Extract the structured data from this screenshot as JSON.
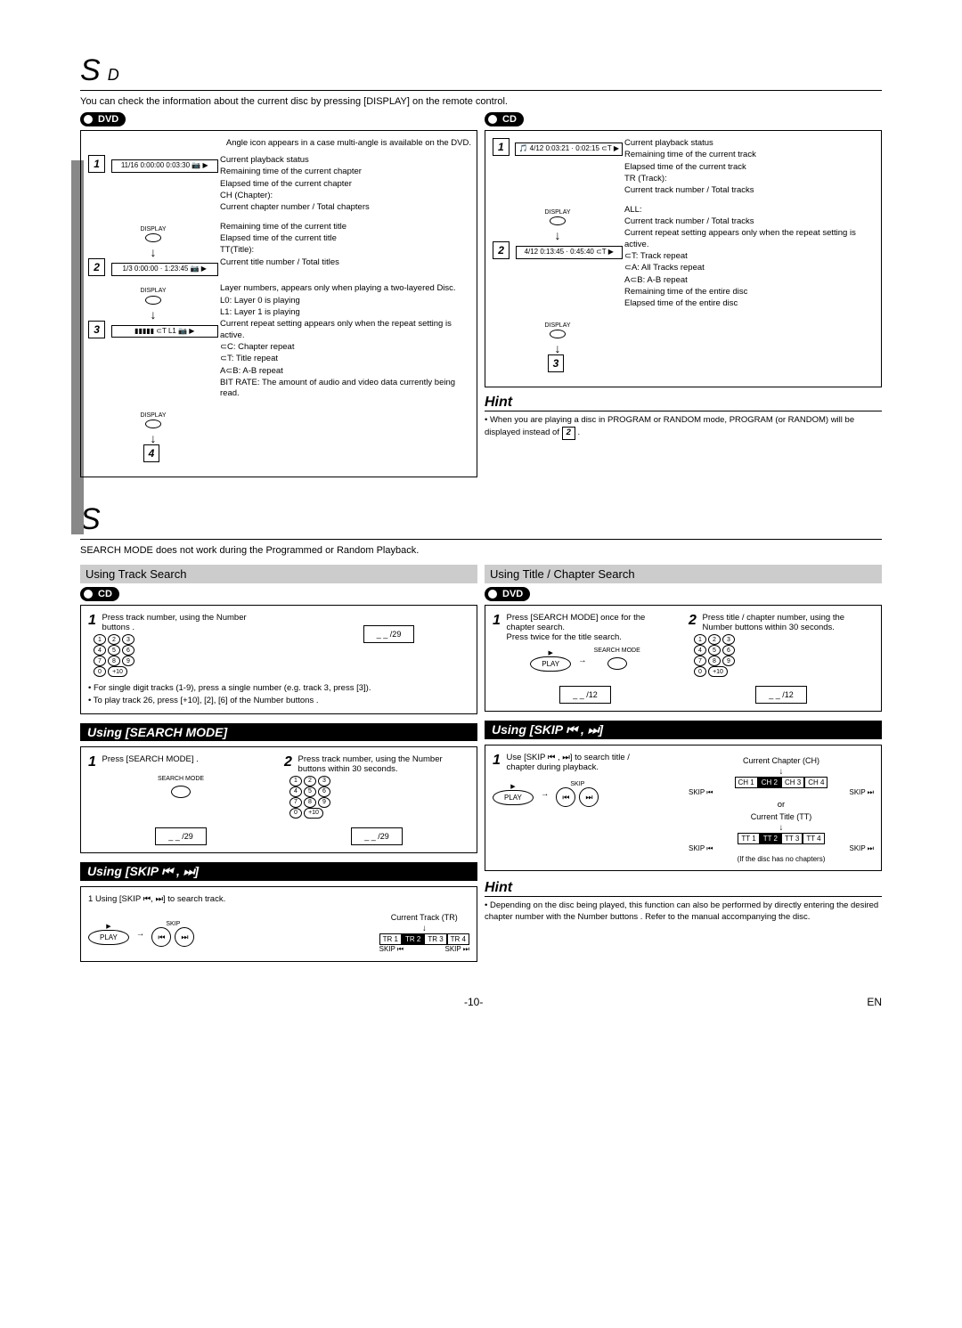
{
  "header": {
    "title": "S",
    "subtitle": "D"
  },
  "intro": "You can check the information about the current disc by pressing [DISPLAY]  on the remote control.",
  "dvd": {
    "badge": "DVD",
    "angle_note": "Angle icon appears in a case multi-angle is available on the DVD.",
    "rows": [
      {
        "num": "1",
        "osd": "11/16  0:00:00  0:03:30  📷 ▶",
        "lines": [
          "Current playback status",
          "Remaining time of the current chapter",
          "Elapsed time of the current chapter",
          "CH (Chapter):",
          "Current chapter number / Total chapters"
        ]
      },
      {
        "num": "2",
        "osd": "1/3  0:00:00 · 1:23:45  📷 ▶",
        "lines": [
          "Remaining time of the current title",
          "Elapsed time of the current title",
          "TT(Title):",
          "Current title number / Total titles"
        ]
      },
      {
        "num": "3",
        "osd": "▮▮▮▮▮  ⊂T L1  📷 ▶",
        "lines": [
          "Layer numbers, appears only when playing a two-layered Disc.",
          "L0: Layer 0 is playing",
          "L1: Layer 1 is playing",
          "Current repeat setting appears only when the repeat setting is active.",
          "⊂C: Chapter repeat",
          "⊂T: Title repeat",
          "A⊂B: A-B repeat",
          "BIT RATE: The amount of audio and video data currently being read."
        ]
      },
      {
        "num": "4",
        "osd": "",
        "lines": []
      }
    ]
  },
  "cd": {
    "badge": "CD",
    "rows": [
      {
        "num": "1",
        "osd": "🎵 4/12  0:03:21 · 0:02:15  ⊂T  ▶",
        "lines": [
          "Current playback status",
          "Remaining time of the current track",
          "Elapsed time of the current track",
          "TR (Track):",
          "Current track number / Total tracks"
        ]
      },
      {
        "num": "2",
        "osd": "4/12  0:13:45 · 0:45:40  ⊂T  ▶",
        "lines": [
          "ALL:",
          "Current track number / Total tracks",
          "Current repeat setting appears only when the repeat setting is active.",
          "⊂T: Track repeat",
          "⊂A: All Tracks repeat",
          "A⊂B: A-B repeat",
          "Remaining time of the entire disc",
          "Elapsed time of the entire disc"
        ]
      },
      {
        "num": "3",
        "osd": "",
        "lines": []
      }
    ],
    "hint_title": "Hint",
    "hint": "• When you are playing a disc in PROGRAM or RANDOM mode, PROGRAM (or RANDOM) will be displayed instead of ",
    "hint_step": "2"
  },
  "search": {
    "title": "S",
    "intro": "SEARCH MODE does not work during the Programmed or Random Playback.",
    "track_head": "Using Track Search",
    "title_head": "Using Title / Chapter Search",
    "cd_badge": "CD",
    "dvd_badge": "DVD",
    "track_step1": "Press track number, using the  Number buttons  .",
    "track_osd": "_ _ /29",
    "track_notes": [
      "• For single digit tracks (1-9), press a single number (e.g. track 3, press [3]).",
      "• To play track 26, press [+10], [2], [6]  of the  Number buttons  ."
    ],
    "search_mode_title": "Using [SEARCH MODE]",
    "sm_step1": "Press [SEARCH MODE] .",
    "sm_step2": "Press track number, using the  Number buttons   within 30 seconds.",
    "sm_label": "SEARCH MODE",
    "sm_osd1": "_ _ /29",
    "sm_osd2": "_ _ /29",
    "skip_title": "Using [SKIP ⏮ , ⏭]",
    "skip_step_cd": "Using [SKIP ⏮, ⏭] to search track.",
    "skip_cd_label": "Current Track (TR)",
    "skip_cd_cells": [
      "TR 1",
      "TR 2",
      "TR 3",
      "TR 4"
    ],
    "skip_cd_under": [
      "SKIP ⏮",
      "SKIP ⏭"
    ],
    "chap_step1": "Press [SEARCH MODE] once for the chapter search.",
    "chap_step1b": "Press twice for the title search.",
    "chap_step2": "Press title / chapter number, using the  Number buttons   within 30 seconds.",
    "chap_osd1": "_ _ /12",
    "chap_osd2": "_ _ /12",
    "skip_dvd_step": "Use [SKIP ⏮ , ⏭] to search title / chapter during playback.",
    "skip_dvd_ch_label": "Current Chapter (CH)",
    "skip_dvd_ch_cells": [
      "CH 1",
      "CH 2",
      "CH 3",
      "CH 4"
    ],
    "skip_dvd_or": "or",
    "skip_dvd_tt_label": "Current Title (TT)",
    "skip_dvd_tt_cells": [
      "TT 1",
      "TT 2",
      "TT 3",
      "TT 4"
    ],
    "skip_dvd_note": "(If the disc has no chapters)",
    "hint_title": "Hint",
    "hint": "• Depending on the disc being played, this function can also be performed by directly entering the desired chapter number with the  Number buttons  . Refer to the manual accompanying the disc.",
    "play_label": "PLAY",
    "skip_label": "SKIP"
  },
  "footer": {
    "page": "-10-",
    "lang": "EN"
  }
}
